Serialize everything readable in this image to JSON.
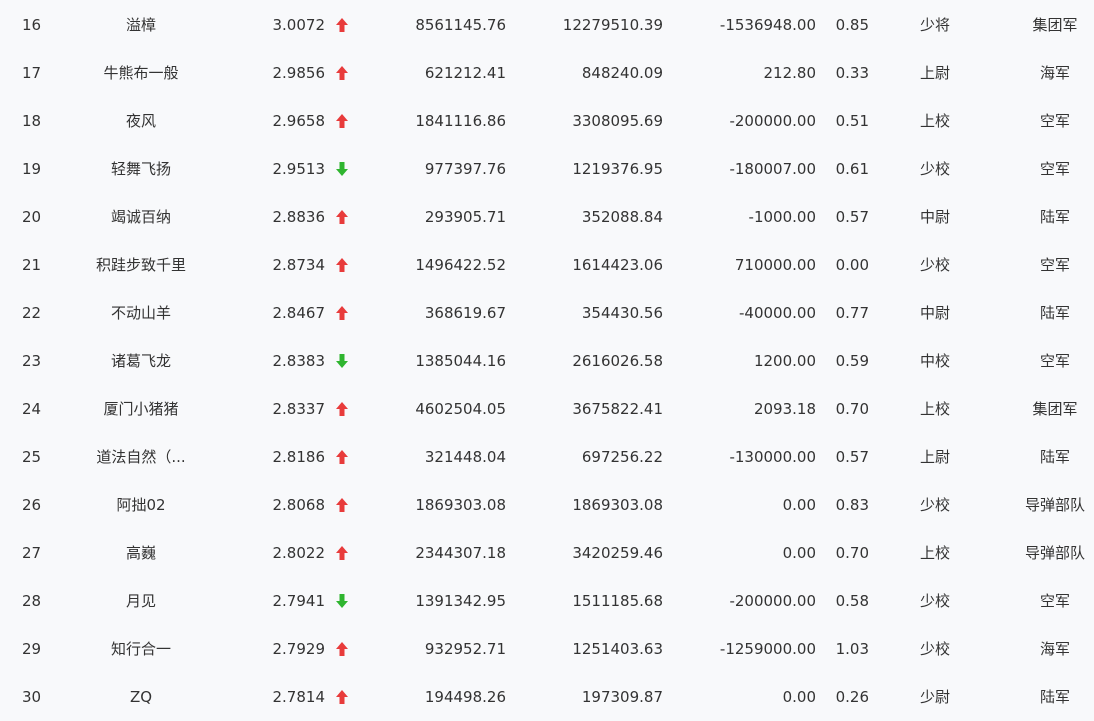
{
  "colors": {
    "up": "#e83b3b",
    "down": "#2fb52f",
    "text": "#333333",
    "background": "#f8f9fb"
  },
  "rows": [
    {
      "rank": "16",
      "name": "溢樟",
      "score": "3.0072",
      "trend": "up",
      "v1": "8561145.76",
      "v2": "12279510.39",
      "v3": "-1536948.00",
      "v4": "0.85",
      "grade": "少将",
      "branch": "集团军"
    },
    {
      "rank": "17",
      "name": "牛熊布一般",
      "score": "2.9856",
      "trend": "up",
      "v1": "621212.41",
      "v2": "848240.09",
      "v3": "212.80",
      "v4": "0.33",
      "grade": "上尉",
      "branch": "海军"
    },
    {
      "rank": "18",
      "name": "夜风",
      "score": "2.9658",
      "trend": "up",
      "v1": "1841116.86",
      "v2": "3308095.69",
      "v3": "-200000.00",
      "v4": "0.51",
      "grade": "上校",
      "branch": "空军"
    },
    {
      "rank": "19",
      "name": "轻舞飞扬",
      "score": "2.9513",
      "trend": "down",
      "v1": "977397.76",
      "v2": "1219376.95",
      "v3": "-180007.00",
      "v4": "0.61",
      "grade": "少校",
      "branch": "空军"
    },
    {
      "rank": "20",
      "name": "竭诚百纳",
      "score": "2.8836",
      "trend": "up",
      "v1": "293905.71",
      "v2": "352088.84",
      "v3": "-1000.00",
      "v4": "0.57",
      "grade": "中尉",
      "branch": "陆军"
    },
    {
      "rank": "21",
      "name": "积跬步致千里",
      "score": "2.8734",
      "trend": "up",
      "v1": "1496422.52",
      "v2": "1614423.06",
      "v3": "710000.00",
      "v4": "0.00",
      "grade": "少校",
      "branch": "空军"
    },
    {
      "rank": "22",
      "name": "不动山羊",
      "score": "2.8467",
      "trend": "up",
      "v1": "368619.67",
      "v2": "354430.56",
      "v3": "-40000.00",
      "v4": "0.77",
      "grade": "中尉",
      "branch": "陆军"
    },
    {
      "rank": "23",
      "name": "诸葛飞龙",
      "score": "2.8383",
      "trend": "down",
      "v1": "1385044.16",
      "v2": "2616026.58",
      "v3": "1200.00",
      "v4": "0.59",
      "grade": "中校",
      "branch": "空军"
    },
    {
      "rank": "24",
      "name": "厦门小猪猪",
      "score": "2.8337",
      "trend": "up",
      "v1": "4602504.05",
      "v2": "3675822.41",
      "v3": "2093.18",
      "v4": "0.70",
      "grade": "上校",
      "branch": "集团军"
    },
    {
      "rank": "25",
      "name": "道法自然（...",
      "score": "2.8186",
      "trend": "up",
      "v1": "321448.04",
      "v2": "697256.22",
      "v3": "-130000.00",
      "v4": "0.57",
      "grade": "上尉",
      "branch": "陆军"
    },
    {
      "rank": "26",
      "name": "阿拙02",
      "score": "2.8068",
      "trend": "up",
      "v1": "1869303.08",
      "v2": "1869303.08",
      "v3": "0.00",
      "v4": "0.83",
      "grade": "少校",
      "branch": "导弹部队"
    },
    {
      "rank": "27",
      "name": "高巍",
      "score": "2.8022",
      "trend": "up",
      "v1": "2344307.18",
      "v2": "3420259.46",
      "v3": "0.00",
      "v4": "0.70",
      "grade": "上校",
      "branch": "导弹部队"
    },
    {
      "rank": "28",
      "name": "月见",
      "score": "2.7941",
      "trend": "down",
      "v1": "1391342.95",
      "v2": "1511185.68",
      "v3": "-200000.00",
      "v4": "0.58",
      "grade": "少校",
      "branch": "空军"
    },
    {
      "rank": "29",
      "name": "知行合一",
      "score": "2.7929",
      "trend": "up",
      "v1": "932952.71",
      "v2": "1251403.63",
      "v3": "-1259000.00",
      "v4": "1.03",
      "grade": "少校",
      "branch": "海军"
    },
    {
      "rank": "30",
      "name": "ZQ",
      "score": "2.7814",
      "trend": "up",
      "v1": "194498.26",
      "v2": "197309.87",
      "v3": "0.00",
      "v4": "0.26",
      "grade": "少尉",
      "branch": "陆军"
    }
  ]
}
